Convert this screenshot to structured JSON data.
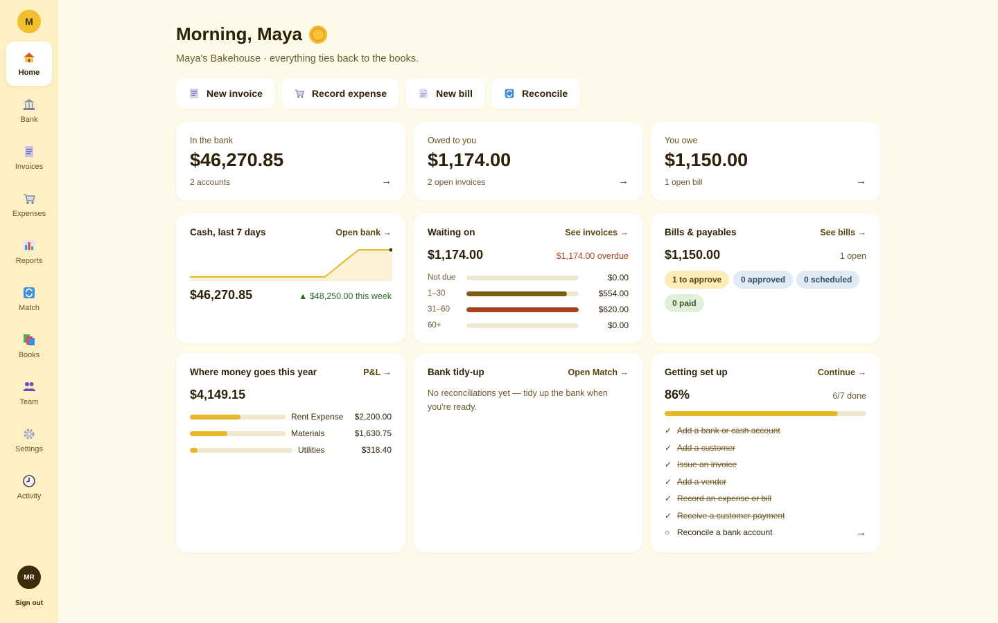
{
  "sidebar": {
    "brand": "M",
    "items": [
      {
        "label": "Home"
      },
      {
        "label": "Bank"
      },
      {
        "label": "Invoices"
      },
      {
        "label": "Expenses"
      },
      {
        "label": "Reports"
      },
      {
        "label": "Match"
      },
      {
        "label": "Books"
      },
      {
        "label": "Team"
      },
      {
        "label": "Settings"
      },
      {
        "label": "Activity"
      }
    ],
    "avatar": "MR",
    "signout": "Sign out"
  },
  "header": {
    "greeting": "Morning, Maya",
    "subtitle": "Maya's Bakehouse · everything ties back to the books."
  },
  "actions": [
    {
      "label": "New invoice",
      "icon": "invoice-icon"
    },
    {
      "label": "Record expense",
      "icon": "cart-icon"
    },
    {
      "label": "New bill",
      "icon": "bill-icon"
    },
    {
      "label": "Reconcile",
      "icon": "reconcile-icon"
    }
  ],
  "kpis": [
    {
      "label": "In the bank",
      "value": "$46,270.85",
      "sub": "2 accounts"
    },
    {
      "label": "Owed to you",
      "value": "$1,174.00",
      "sub": "2 open invoices"
    },
    {
      "label": "You owe",
      "value": "$1,150.00",
      "sub": "1 open bill"
    }
  ],
  "arrow": "→",
  "cash": {
    "title": "Cash, last 7 days",
    "link": "Open bank →",
    "balance": "$46,270.85",
    "change": "▲ $48,250.00 this week",
    "chart_data": {
      "type": "area",
      "values": [
        0,
        0,
        0,
        0,
        0,
        48250,
        48250
      ]
    }
  },
  "waiting": {
    "title": "Waiting on",
    "link": "See invoices →",
    "total": "$1,174.00",
    "overdue": "$1,174.00 overdue",
    "rows": [
      {
        "label": "Not due",
        "amount": "$0.00",
        "fraction": 0,
        "color": "#7a5c10"
      },
      {
        "label": "1–30",
        "amount": "$554.00",
        "fraction": 0.893,
        "color": "#7a5c10"
      },
      {
        "label": "31–60",
        "amount": "$620.00",
        "fraction": 1.0,
        "color": "#a8401a"
      },
      {
        "label": "60+",
        "amount": "$0.00",
        "fraction": 0,
        "color": "#7a5c10"
      }
    ]
  },
  "bills": {
    "title": "Bills & payables",
    "link": "See bills →",
    "total": "$1,150.00",
    "open": "1 open",
    "pills": [
      {
        "label": "1 to approve",
        "bg": "#fbecb8",
        "color": "#5a4510"
      },
      {
        "label": "0 approved",
        "bg": "#dfeaf3",
        "color": "#2e5070"
      },
      {
        "label": "0 scheduled",
        "bg": "#dfeaf3",
        "color": "#2e5070"
      },
      {
        "label": "0 paid",
        "bg": "#e2efd9",
        "color": "#3a5a2a"
      }
    ]
  },
  "money": {
    "title": "Where money goes this year",
    "link": "P&L →",
    "total": "$4,149.15",
    "rows": [
      {
        "name": "Rent Expense",
        "amount": "$2,200.00",
        "fraction": 0.53
      },
      {
        "name": "Materials",
        "amount": "$1,630.75",
        "fraction": 0.39
      },
      {
        "name": "Utilities",
        "amount": "$318.40",
        "fraction": 0.077
      }
    ]
  },
  "tidy": {
    "title": "Bank tidy-up",
    "link": "Open Match →",
    "message": "No reconciliations yet — tidy up the bank when you're ready."
  },
  "setup": {
    "title": "Getting set up",
    "link": "Continue →",
    "percent": "86%",
    "done": "6/7 done",
    "progress": 0.86,
    "items": [
      {
        "label": "Add a bank or cash account",
        "done": true
      },
      {
        "label": "Add a customer",
        "done": true
      },
      {
        "label": "Issue an invoice",
        "done": true
      },
      {
        "label": "Add a vendor",
        "done": true
      },
      {
        "label": "Record an expense or bill",
        "done": true
      },
      {
        "label": "Receive a customer payment",
        "done": true
      },
      {
        "label": "Reconcile a bank account",
        "done": false
      }
    ]
  }
}
